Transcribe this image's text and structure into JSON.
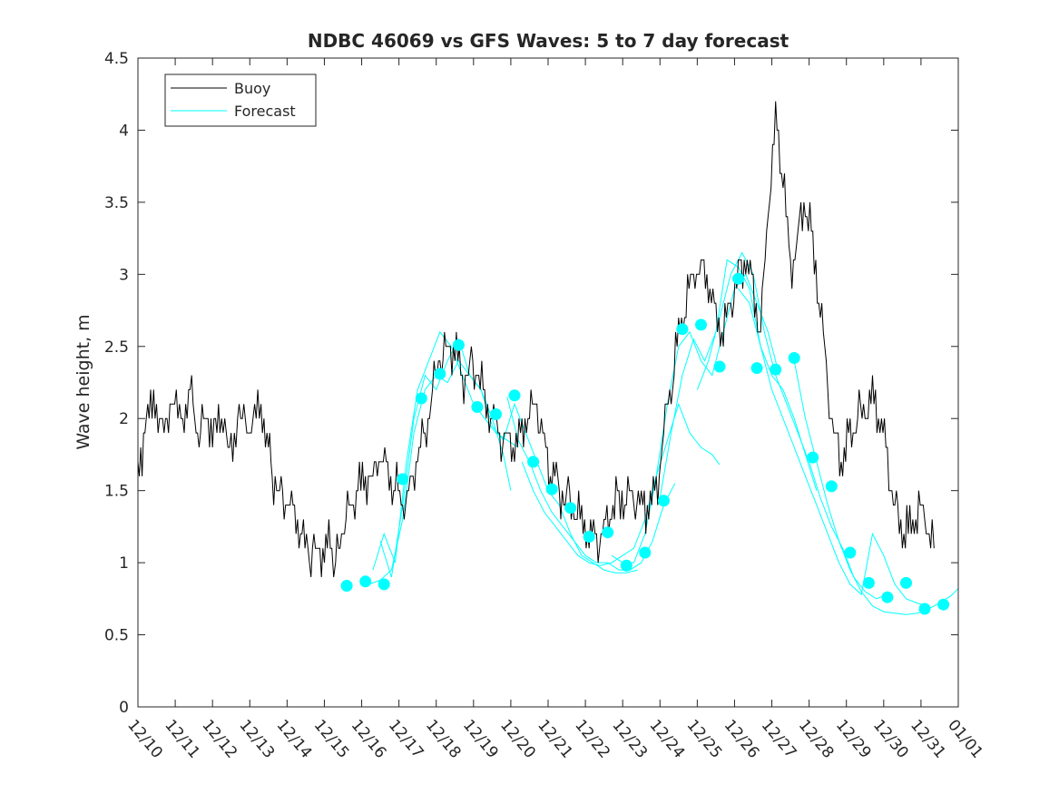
{
  "chart_data": {
    "type": "line",
    "title": "NDBC 46069 vs GFS Waves: 5 to 7 day forecast",
    "xlabel": "",
    "ylabel": "Wave height, m",
    "x_range_days": [
      0,
      22
    ],
    "ylim": [
      0,
      4.5
    ],
    "y_ticks": [
      0,
      0.5,
      1,
      1.5,
      2,
      2.5,
      3,
      3.5,
      4,
      4.5
    ],
    "y_tick_labels": [
      "0",
      "0.5",
      "1",
      "1.5",
      "2",
      "2.5",
      "3",
      "3.5",
      "4",
      "4.5"
    ],
    "x_ticks": [
      0,
      1,
      2,
      3,
      4,
      5,
      6,
      7,
      8,
      9,
      10,
      11,
      12,
      13,
      14,
      15,
      16,
      17,
      18,
      19,
      20,
      21,
      22
    ],
    "x_tick_labels": [
      "12/10",
      "12/11",
      "12/12",
      "12/13",
      "12/14",
      "12/15",
      "12/16",
      "12/17",
      "12/18",
      "12/19",
      "12/20",
      "12/21",
      "12/22",
      "12/23",
      "12/24",
      "12/25",
      "12/26",
      "12/27",
      "12/28",
      "12/29",
      "12/30",
      "12/31",
      "01/01"
    ],
    "grid": false,
    "legend": {
      "position": "top-left",
      "entries": [
        "Buoy",
        "Forecast"
      ]
    },
    "colors": {
      "buoy": "#000000",
      "forecast": "#00ffff"
    },
    "buoy_points": [
      [
        0,
        1.7
      ],
      [
        0.3,
        2.0
      ],
      [
        0.5,
        2.1
      ],
      [
        0.7,
        1.9
      ],
      [
        0.9,
        2.1
      ],
      [
        1.2,
        2.0
      ],
      [
        1.4,
        2.2
      ],
      [
        1.6,
        1.9
      ],
      [
        1.8,
        2.0
      ],
      [
        2.2,
        1.9
      ],
      [
        2.5,
        1.85
      ],
      [
        2.8,
        2.0
      ],
      [
        3.0,
        1.95
      ],
      [
        3.3,
        2.05
      ],
      [
        3.5,
        1.85
      ],
      [
        3.6,
        1.6
      ],
      [
        3.8,
        1.5
      ],
      [
        4.0,
        1.4
      ],
      [
        4.2,
        1.35
      ],
      [
        4.4,
        1.2
      ],
      [
        4.6,
        1.05
      ],
      [
        4.8,
        1.1
      ],
      [
        5.0,
        1.05
      ],
      [
        5.2,
        1.1
      ],
      [
        5.3,
        1.0
      ],
      [
        5.5,
        1.2
      ],
      [
        5.7,
        1.4
      ],
      [
        5.9,
        1.5
      ],
      [
        6.1,
        1.55
      ],
      [
        6.3,
        1.6
      ],
      [
        6.5,
        1.7
      ],
      [
        6.7,
        1.65
      ],
      [
        6.9,
        1.5
      ],
      [
        7.1,
        1.4
      ],
      [
        7.3,
        1.55
      ],
      [
        7.5,
        1.7
      ],
      [
        7.7,
        1.9
      ],
      [
        7.9,
        2.2
      ],
      [
        8.1,
        2.4
      ],
      [
        8.3,
        2.5
      ],
      [
        8.5,
        2.45
      ],
      [
        8.7,
        2.3
      ],
      [
        8.9,
        2.35
      ],
      [
        9.1,
        2.3
      ],
      [
        9.3,
        2.15
      ],
      [
        9.5,
        2.0
      ],
      [
        9.7,
        1.85
      ],
      [
        9.9,
        1.9
      ],
      [
        10.1,
        1.8
      ],
      [
        10.3,
        1.9
      ],
      [
        10.5,
        2.05
      ],
      [
        10.7,
        2.1
      ],
      [
        10.9,
        1.85
      ],
      [
        11.1,
        1.6
      ],
      [
        11.3,
        1.5
      ],
      [
        11.5,
        1.45
      ],
      [
        11.7,
        1.35
      ],
      [
        11.9,
        1.3
      ],
      [
        12.1,
        1.2
      ],
      [
        12.3,
        1.15
      ],
      [
        12.5,
        1.25
      ],
      [
        12.7,
        1.35
      ],
      [
        12.9,
        1.45
      ],
      [
        13.1,
        1.45
      ],
      [
        13.3,
        1.4
      ],
      [
        13.5,
        1.45
      ],
      [
        13.7,
        1.35
      ],
      [
        13.9,
        1.5
      ],
      [
        14.1,
        1.9
      ],
      [
        14.3,
        2.2
      ],
      [
        14.5,
        2.6
      ],
      [
        14.7,
        2.8
      ],
      [
        14.9,
        3.0
      ],
      [
        15.1,
        3.05
      ],
      [
        15.3,
        2.9
      ],
      [
        15.5,
        2.7
      ],
      [
        15.7,
        2.6
      ],
      [
        15.9,
        2.8
      ],
      [
        16.1,
        3.0
      ],
      [
        16.3,
        3.1
      ],
      [
        16.5,
        2.9
      ],
      [
        16.7,
        2.6
      ],
      [
        16.9,
        3.4
      ],
      [
        17.1,
        4.1
      ],
      [
        17.3,
        3.7
      ],
      [
        17.5,
        3.0
      ],
      [
        17.7,
        3.3
      ],
      [
        17.9,
        3.5
      ],
      [
        18.1,
        3.2
      ],
      [
        18.3,
        2.8
      ],
      [
        18.5,
        2.2
      ],
      [
        18.7,
        1.85
      ],
      [
        18.9,
        1.7
      ],
      [
        19.1,
        1.9
      ],
      [
        19.3,
        2.05
      ],
      [
        19.5,
        2.0
      ],
      [
        19.7,
        2.2
      ],
      [
        19.9,
        2.0
      ],
      [
        20.1,
        1.7
      ],
      [
        20.3,
        1.4
      ],
      [
        20.5,
        1.2
      ],
      [
        20.7,
        1.25
      ],
      [
        20.9,
        1.35
      ],
      [
        21.1,
        1.3
      ],
      [
        21.3,
        1.2
      ],
      [
        21.35,
        1.1
      ]
    ],
    "forecast_lines": [
      [
        [
          6.2,
          0.85
        ],
        [
          6.5,
          0.88
        ],
        [
          6.8,
          0.95
        ],
        [
          7.1,
          1.3
        ],
        [
          7.4,
          1.9
        ],
        [
          7.7,
          2.2
        ],
        [
          8.0,
          2.3
        ],
        [
          8.3,
          2.25
        ],
        [
          8.6,
          2.4
        ],
        [
          8.9,
          2.3
        ],
        [
          9.2,
          2.2
        ],
        [
          9.5,
          2.0
        ],
        [
          9.8,
          1.75
        ],
        [
          10.0,
          1.5
        ]
      ],
      [
        [
          6.3,
          0.95
        ],
        [
          6.6,
          1.2
        ],
        [
          6.9,
          1.0
        ],
        [
          7.2,
          1.7
        ],
        [
          7.5,
          2.2
        ],
        [
          7.8,
          2.4
        ],
        [
          8.1,
          2.6
        ],
        [
          8.4,
          2.5
        ],
        [
          8.7,
          2.3
        ],
        [
          9.0,
          2.1
        ],
        [
          9.3,
          2.0
        ],
        [
          9.6,
          1.9
        ],
        [
          9.9,
          1.85
        ],
        [
          10.2,
          1.8
        ]
      ],
      [
        [
          6.5,
          1.15
        ],
        [
          6.8,
          0.9
        ],
        [
          7.1,
          1.4
        ],
        [
          7.4,
          2.0
        ],
        [
          7.7,
          2.3
        ],
        [
          8.0,
          2.2
        ],
        [
          8.3,
          2.4
        ],
        [
          8.6,
          2.55
        ],
        [
          8.9,
          2.3
        ],
        [
          9.2,
          2.2
        ],
        [
          9.5,
          1.95
        ],
        [
          9.8,
          1.85
        ],
        [
          10.1,
          2.1
        ],
        [
          10.4,
          1.9
        ],
        [
          10.7,
          1.7
        ],
        [
          11.0,
          1.5
        ],
        [
          11.3,
          1.4
        ],
        [
          11.6,
          1.2
        ],
        [
          11.9,
          1.05
        ],
        [
          12.2,
          1.0
        ],
        [
          12.5,
          0.95
        ],
        [
          12.8,
          0.93
        ],
        [
          13.1,
          0.93
        ],
        [
          13.4,
          0.95
        ]
      ],
      [
        [
          9.9,
          2.15
        ],
        [
          10.2,
          1.85
        ],
        [
          10.5,
          1.7
        ],
        [
          10.8,
          1.5
        ],
        [
          11.1,
          1.35
        ],
        [
          11.4,
          1.25
        ],
        [
          11.7,
          1.15
        ],
        [
          12.0,
          1.05
        ],
        [
          12.3,
          1.0
        ],
        [
          12.6,
          1.0
        ],
        [
          12.9,
          0.95
        ],
        [
          13.2,
          0.95
        ],
        [
          13.5,
          1.0
        ],
        [
          13.8,
          1.15
        ],
        [
          14.1,
          1.4
        ],
        [
          14.4,
          1.55
        ]
      ],
      [
        [
          10.3,
          1.7
        ],
        [
          10.6,
          1.5
        ],
        [
          10.9,
          1.35
        ],
        [
          11.2,
          1.25
        ],
        [
          11.5,
          1.15
        ],
        [
          11.8,
          1.05
        ],
        [
          12.1,
          1.0
        ],
        [
          12.4,
          0.98
        ],
        [
          12.7,
          1.0
        ],
        [
          13.0,
          1.05
        ],
        [
          13.3,
          1.1
        ],
        [
          13.6,
          1.3
        ],
        [
          13.9,
          1.6
        ],
        [
          14.2,
          1.85
        ],
        [
          14.5,
          2.1
        ],
        [
          14.8,
          1.9
        ],
        [
          15.1,
          1.8
        ],
        [
          15.4,
          1.75
        ],
        [
          15.6,
          1.68
        ]
      ],
      [
        [
          12.7,
          1.05
        ],
        [
          13.0,
          1.0
        ],
        [
          13.3,
          1.0
        ],
        [
          13.6,
          1.2
        ],
        [
          13.9,
          1.6
        ],
        [
          14.2,
          2.1
        ],
        [
          14.5,
          2.5
        ],
        [
          14.8,
          2.6
        ],
        [
          15.1,
          2.4
        ],
        [
          15.4,
          2.3
        ],
        [
          15.7,
          2.6
        ],
        [
          16.0,
          2.9
        ],
        [
          16.3,
          3.0
        ],
        [
          16.6,
          2.8
        ],
        [
          16.9,
          2.6
        ],
        [
          17.2,
          2.3
        ]
      ],
      [
        [
          14.0,
          1.45
        ],
        [
          14.3,
          1.9
        ],
        [
          14.6,
          2.3
        ],
        [
          14.9,
          2.55
        ],
        [
          15.2,
          2.4
        ],
        [
          15.5,
          2.6
        ],
        [
          15.8,
          3.1
        ],
        [
          16.1,
          3.05
        ],
        [
          16.4,
          2.9
        ],
        [
          16.7,
          2.5
        ],
        [
          17.0,
          2.3
        ],
        [
          17.3,
          2.2
        ],
        [
          17.6,
          2.0
        ],
        [
          17.9,
          1.75
        ],
        [
          18.2,
          1.5
        ]
      ],
      [
        [
          15.0,
          2.2
        ],
        [
          15.3,
          2.4
        ],
        [
          15.6,
          2.7
        ],
        [
          15.9,
          3.0
        ],
        [
          16.2,
          3.15
        ],
        [
          16.5,
          3.0
        ],
        [
          16.8,
          2.6
        ],
        [
          17.1,
          2.3
        ],
        [
          17.4,
          2.1
        ],
        [
          17.7,
          1.9
        ],
        [
          18.0,
          1.7
        ],
        [
          18.3,
          1.45
        ],
        [
          18.6,
          1.25
        ],
        [
          18.9,
          1.1
        ],
        [
          19.2,
          0.9
        ],
        [
          19.5,
          0.8
        ],
        [
          19.8,
          0.75
        ],
        [
          20.1,
          0.78
        ]
      ],
      [
        [
          16.1,
          2.9
        ],
        [
          16.4,
          2.8
        ],
        [
          16.7,
          2.5
        ],
        [
          17.0,
          2.2
        ],
        [
          17.3,
          2.0
        ],
        [
          17.6,
          1.8
        ],
        [
          17.9,
          1.6
        ],
        [
          18.2,
          1.4
        ],
        [
          18.5,
          1.2
        ],
        [
          18.8,
          1.0
        ],
        [
          19.1,
          0.85
        ],
        [
          19.4,
          0.78
        ],
        [
          19.7,
          1.2
        ],
        [
          20.0,
          1.05
        ],
        [
          20.3,
          0.85
        ],
        [
          20.6,
          0.75
        ],
        [
          20.9,
          0.72
        ],
        [
          21.2,
          0.7
        ]
      ],
      [
        [
          17.6,
          2.4
        ],
        [
          17.9,
          2.0
        ],
        [
          18.2,
          1.7
        ],
        [
          18.5,
          1.4
        ],
        [
          18.8,
          1.15
        ],
        [
          19.1,
          0.95
        ],
        [
          19.4,
          0.8
        ],
        [
          19.7,
          0.7
        ],
        [
          20.0,
          0.66
        ],
        [
          20.3,
          0.65
        ],
        [
          20.6,
          0.64
        ],
        [
          20.9,
          0.65
        ],
        [
          21.2,
          0.68
        ],
        [
          21.5,
          0.72
        ],
        [
          21.8,
          0.77
        ],
        [
          22.0,
          0.82
        ]
      ]
    ],
    "forecast_markers": [
      [
        5.6,
        0.84
      ],
      [
        6.1,
        0.87
      ],
      [
        6.6,
        0.85
      ],
      [
        7.1,
        1.58
      ],
      [
        7.6,
        2.14
      ],
      [
        8.1,
        2.31
      ],
      [
        8.6,
        2.51
      ],
      [
        9.1,
        2.08
      ],
      [
        9.6,
        2.03
      ],
      [
        10.1,
        2.16
      ],
      [
        10.6,
        1.7
      ],
      [
        11.1,
        1.51
      ],
      [
        11.6,
        1.38
      ],
      [
        12.1,
        1.18
      ],
      [
        12.6,
        1.21
      ],
      [
        13.1,
        0.98
      ],
      [
        13.6,
        1.07
      ],
      [
        14.1,
        1.43
      ],
      [
        14.6,
        2.62
      ],
      [
        15.1,
        2.65
      ],
      [
        15.6,
        2.36
      ],
      [
        16.1,
        2.97
      ],
      [
        16.6,
        2.35
      ],
      [
        17.1,
        2.34
      ],
      [
        17.6,
        2.42
      ],
      [
        18.1,
        1.73
      ],
      [
        18.6,
        1.53
      ],
      [
        19.1,
        1.07
      ],
      [
        19.6,
        0.86
      ],
      [
        20.1,
        0.76
      ],
      [
        20.6,
        0.86
      ],
      [
        21.1,
        0.68
      ],
      [
        21.6,
        0.71
      ]
    ]
  }
}
